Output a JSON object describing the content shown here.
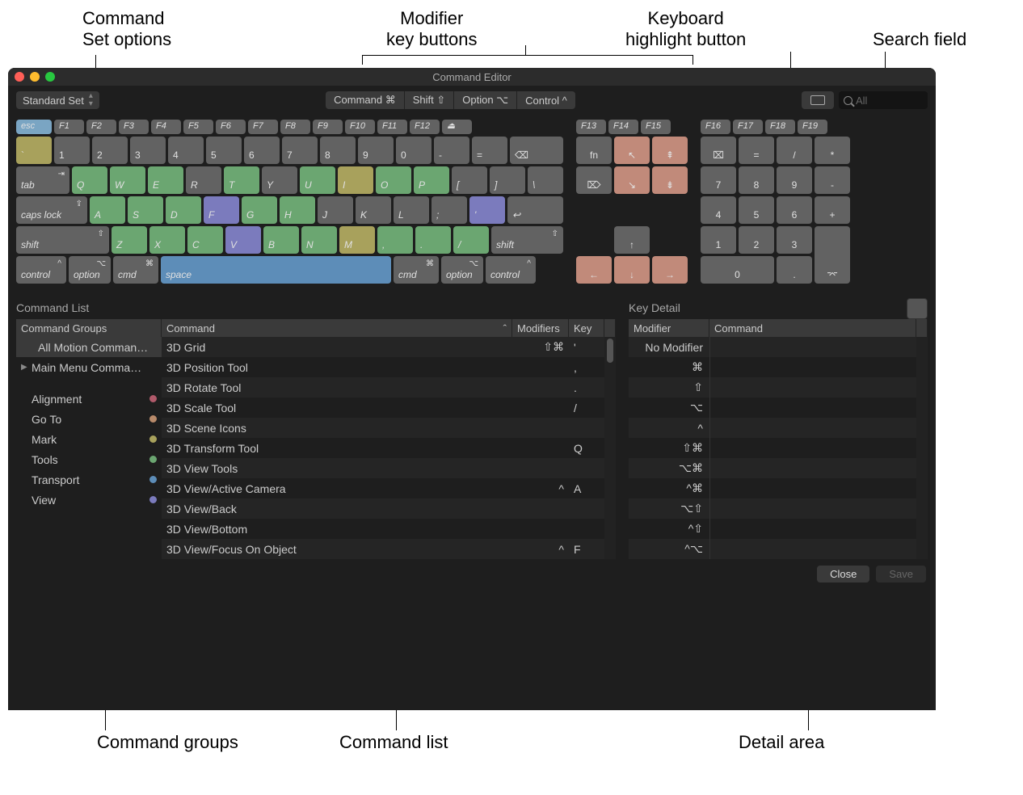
{
  "callouts": {
    "set_options": "Command\nSet options",
    "modifier_keys": "Modifier\nkey buttons",
    "highlight": "Keyboard\nhighlight button",
    "search": "Search field",
    "cmd_groups": "Command groups",
    "cmd_list": "Command list",
    "detail_area": "Detail area"
  },
  "window": {
    "title": "Command Editor",
    "set_label": "Standard Set",
    "modifiers": [
      "Command ⌘",
      "Shift ⇧",
      "Option ⌥",
      "Control ^"
    ],
    "search_placeholder": "All"
  },
  "panels": {
    "command_list": "Command List",
    "key_detail": "Key Detail",
    "th_groups": "Command Groups",
    "th_command": "Command",
    "th_modifiers": "Modifiers",
    "th_key": "Key",
    "th_modifier": "Modifier",
    "th_dcmd": "Command",
    "close": "Close",
    "save": "Save"
  },
  "groups_top": [
    {
      "label": "All Motion Comman…",
      "sel": true,
      "disc": ""
    },
    {
      "label": "Main Menu Comma…",
      "sel": false,
      "disc": "▶"
    }
  ],
  "groups": [
    {
      "label": "Alignment",
      "color": "#b05a6a"
    },
    {
      "label": "Go To",
      "color": "#b88a6a"
    },
    {
      "label": "Mark",
      "color": "#a8a15c"
    },
    {
      "label": "Tools",
      "color": "#6ba671"
    },
    {
      "label": "Transport",
      "color": "#5d8db8"
    },
    {
      "label": "View",
      "color": "#7b7bbd"
    }
  ],
  "commands": [
    {
      "name": "3D Grid",
      "mod": "⇧⌘",
      "key": "'"
    },
    {
      "name": "3D Position Tool",
      "mod": "",
      "key": ","
    },
    {
      "name": "3D Rotate Tool",
      "mod": "",
      "key": "."
    },
    {
      "name": "3D Scale Tool",
      "mod": "",
      "key": "/"
    },
    {
      "name": "3D Scene Icons",
      "mod": "",
      "key": ""
    },
    {
      "name": "3D Transform Tool",
      "mod": "",
      "key": "Q"
    },
    {
      "name": "3D View Tools",
      "mod": "",
      "key": ""
    },
    {
      "name": "3D View/Active Camera",
      "mod": "^",
      "key": "A"
    },
    {
      "name": "3D View/Back",
      "mod": "",
      "key": ""
    },
    {
      "name": "3D View/Bottom",
      "mod": "",
      "key": ""
    },
    {
      "name": "3D View/Focus On Object",
      "mod": "^",
      "key": "F"
    }
  ],
  "detail_rows": [
    "No Modifier",
    "⌘",
    "⇧",
    "⌥",
    "^",
    "⇧⌘",
    "⌥⌘",
    "^⌘",
    "⌥⇧",
    "^⇧",
    "^⌥"
  ],
  "keyboard": {
    "fn_row": [
      "esc",
      "F1",
      "F2",
      "F3",
      "F4",
      "F5",
      "F6",
      "F7",
      "F8",
      "F9",
      "F10",
      "F11",
      "F12",
      "⏏"
    ],
    "fn_row2": [
      "F13",
      "F14",
      "F15"
    ],
    "fn_row3": [
      "F16",
      "F17",
      "F18",
      "F19"
    ],
    "row1": [
      "`",
      "1",
      "2",
      "3",
      "4",
      "5",
      "6",
      "7",
      "8",
      "9",
      "0",
      "-",
      "="
    ],
    "row2": [
      "Q",
      "W",
      "E",
      "R",
      "T",
      "Y",
      "U",
      "I",
      "O",
      "P",
      "[",
      "]",
      "\\"
    ],
    "row3": [
      "A",
      "S",
      "D",
      "F",
      "G",
      "H",
      "J",
      "K",
      "L",
      ";",
      "'"
    ],
    "row4": [
      "Z",
      "X",
      "C",
      "V",
      "B",
      "N",
      "M",
      ",",
      ".",
      "/"
    ],
    "numpad_top": [
      "⌧",
      "=",
      "/",
      "*"
    ],
    "numpad_r1": [
      "7",
      "8",
      "9",
      "-"
    ],
    "numpad_r2": [
      "4",
      "5",
      "6",
      "+"
    ],
    "numpad_r3": [
      "1",
      "2",
      "3"
    ],
    "numpad_r4": [
      "0",
      "."
    ]
  },
  "colors": {
    "row1_olive": [
      "`"
    ],
    "esc_blue": true,
    "row2_green": [
      "Q",
      "W",
      "E",
      "T",
      "U",
      "O",
      "P"
    ],
    "row2_olive": [
      "I"
    ],
    "row3_green": [
      "A",
      "S",
      "D",
      "G",
      "H"
    ],
    "row3_purple": [
      "F",
      "'"
    ],
    "row4_green": [
      "Z",
      "X",
      "C",
      "B",
      "N",
      ",",
      ".",
      "/"
    ],
    "row4_purple": [
      "V"
    ],
    "row4_olive": [
      "M"
    ],
    "nav_peach": [
      "home",
      "end",
      "pgup",
      "pgdn",
      "left",
      "down",
      "right"
    ]
  }
}
